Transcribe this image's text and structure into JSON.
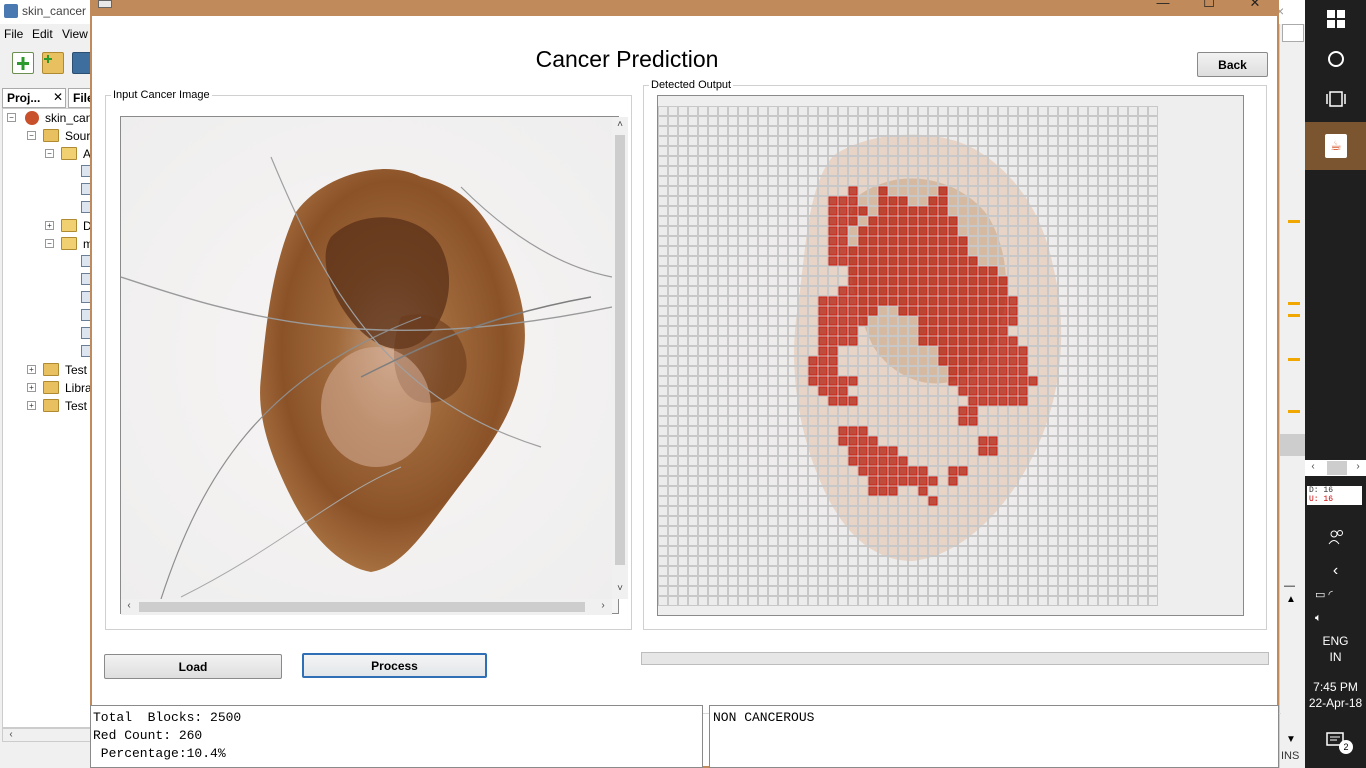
{
  "ide": {
    "title": "skin_cancer",
    "menus": [
      "File",
      "Edit",
      "View"
    ],
    "tabs": [
      "Proj...",
      "File"
    ],
    "tree": [
      {
        "label": "skin_can",
        "kind": "project"
      },
      {
        "label": "Sour",
        "kind": "folder"
      },
      {
        "label": "A",
        "kind": "package"
      },
      {
        "label": "",
        "kind": "file"
      },
      {
        "label": "",
        "kind": "file"
      },
      {
        "label": "",
        "kind": "file"
      },
      {
        "label": "D",
        "kind": "package"
      },
      {
        "label": "m",
        "kind": "package"
      },
      {
        "label": "",
        "kind": "file"
      },
      {
        "label": "",
        "kind": "file"
      },
      {
        "label": "",
        "kind": "file"
      },
      {
        "label": "",
        "kind": "file"
      },
      {
        "label": "",
        "kind": "file"
      },
      {
        "label": "",
        "kind": "file"
      },
      {
        "label": "Test",
        "kind": "folder"
      },
      {
        "label": "Libra",
        "kind": "folder"
      },
      {
        "label": "Test",
        "kind": "folder"
      }
    ],
    "status_ins": "INS"
  },
  "taskbar": {
    "mem_d": "D: 16",
    "mem_u": "U: 16",
    "lang_line1": "ENG",
    "lang_line2": "IN",
    "time": "7:45 PM",
    "date": "22-Apr-18",
    "notifications": "2"
  },
  "app": {
    "title": "Cancer Prediction",
    "back_label": "Back",
    "input_group_label": "Input Cancer Image",
    "output_group_label": "Detected Output",
    "load_label": "Load",
    "process_label": "Process",
    "progress": 0,
    "stats": {
      "line1": "Total  Blocks: 2500",
      "line2": "Red Count: 260",
      "line3": " Percentage:10.4%"
    },
    "result": "NON CANCEROUS",
    "colors": {
      "window_border": "#c08a5a",
      "lesion_dark": "#5a3018",
      "lesion_mid": "#9a6538",
      "detected_block": "#b02010",
      "focus_border": "#2e6fb5"
    }
  }
}
